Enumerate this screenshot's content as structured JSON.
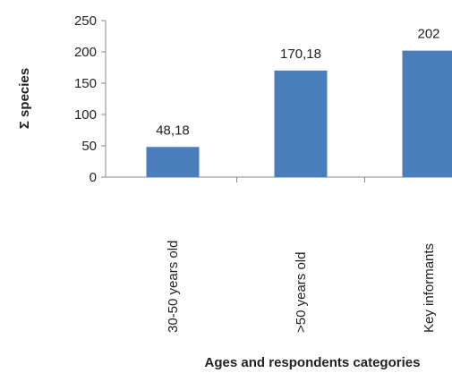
{
  "chart_data": {
    "type": "bar",
    "categories": [
      "30-50 years old",
      ">50 years old",
      "Key informants"
    ],
    "values": [
      48.18,
      170.18,
      202
    ],
    "data_labels": [
      "48,18",
      "170,18",
      "202"
    ],
    "ylabel": "Σ species",
    "xlabel": "Ages and respondents categories",
    "ylim": [
      0,
      250
    ],
    "yticks": [
      0,
      50,
      100,
      150,
      200,
      250
    ],
    "grid": false,
    "bar_color": "#4a7ebb"
  }
}
